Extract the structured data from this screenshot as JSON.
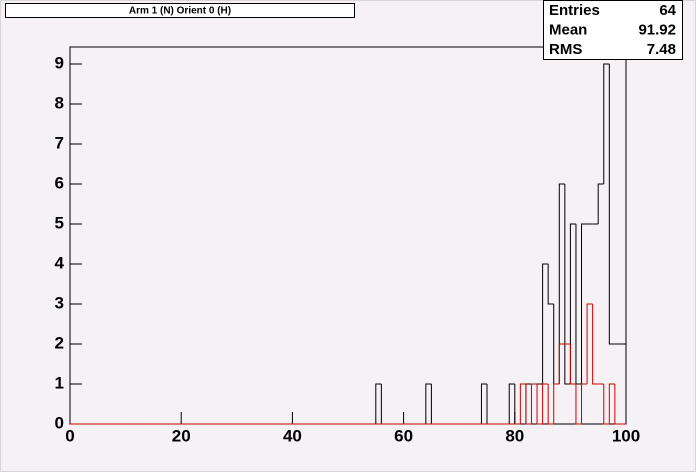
{
  "chart_data": {
    "type": "histogram",
    "title": "Arm 1 (N) Orient 0 (H)",
    "bins": [
      0,
      1,
      2,
      3,
      4,
      5,
      6,
      7,
      8,
      9,
      10,
      11,
      12,
      13,
      14,
      15,
      16,
      17,
      18,
      19,
      20,
      21,
      22,
      23,
      24,
      25,
      26,
      27,
      28,
      29,
      30,
      31,
      32,
      33,
      34,
      35,
      36,
      37,
      38,
      39,
      40,
      41,
      42,
      43,
      44,
      45,
      46,
      47,
      48,
      49,
      50,
      51,
      52,
      53,
      54,
      55,
      56,
      57,
      58,
      59,
      60,
      61,
      62,
      63,
      64,
      65,
      66,
      67,
      68,
      69,
      70,
      71,
      72,
      73,
      74,
      75,
      76,
      77,
      78,
      79,
      80,
      81,
      82,
      83,
      84,
      85,
      86,
      87,
      88,
      89,
      90,
      91,
      92,
      93,
      94,
      95,
      96,
      97,
      98,
      99,
      100
    ],
    "series": [
      {
        "color": "#000000",
        "values": [
          0,
          0,
          0,
          0,
          0,
          0,
          0,
          0,
          0,
          0,
          0,
          0,
          0,
          0,
          0,
          0,
          0,
          0,
          0,
          0,
          0,
          0,
          0,
          0,
          0,
          0,
          0,
          0,
          0,
          0,
          0,
          0,
          0,
          0,
          0,
          0,
          0,
          0,
          0,
          0,
          0,
          0,
          0,
          0,
          0,
          0,
          0,
          0,
          0,
          0,
          0,
          0,
          0,
          0,
          0,
          1,
          0,
          0,
          0,
          0,
          0,
          0,
          0,
          0,
          1,
          0,
          0,
          0,
          0,
          0,
          0,
          0,
          0,
          0,
          1,
          0,
          0,
          0,
          0,
          1,
          0,
          0,
          1,
          1,
          1,
          4,
          3,
          1,
          6,
          1,
          5,
          1,
          5,
          5,
          5,
          6,
          9,
          2,
          2,
          2
        ]
      },
      {
        "color": "#d00000",
        "values": [
          0,
          0,
          0,
          0,
          0,
          0,
          0,
          0,
          0,
          0,
          0,
          0,
          0,
          0,
          0,
          0,
          0,
          0,
          0,
          0,
          0,
          0,
          0,
          0,
          0,
          0,
          0,
          0,
          0,
          0,
          0,
          0,
          0,
          0,
          0,
          0,
          0,
          0,
          0,
          0,
          0,
          0,
          0,
          0,
          0,
          0,
          0,
          0,
          0,
          0,
          0,
          0,
          0,
          0,
          0,
          0,
          0,
          0,
          0,
          0,
          0,
          0,
          0,
          0,
          0,
          0,
          0,
          0,
          0,
          0,
          0,
          0,
          0,
          0,
          0,
          0,
          0,
          0,
          0,
          0,
          0,
          1,
          0,
          1,
          0,
          1,
          0,
          1,
          2,
          2,
          1,
          0,
          1,
          3,
          1,
          1,
          0,
          1,
          0,
          0
        ]
      }
    ],
    "xlim": [
      0,
      100
    ],
    "xticks": [
      0,
      20,
      40,
      60,
      80,
      100
    ],
    "ylim": [
      0,
      9.425
    ],
    "yticks": [
      0,
      1,
      2,
      3,
      4,
      5,
      6,
      7,
      8,
      9
    ],
    "stats": [
      {
        "label": "Entries",
        "value": 64
      },
      {
        "label": "Mean",
        "value": 91.92
      },
      {
        "label": "RMS",
        "value": 7.48
      }
    ]
  }
}
